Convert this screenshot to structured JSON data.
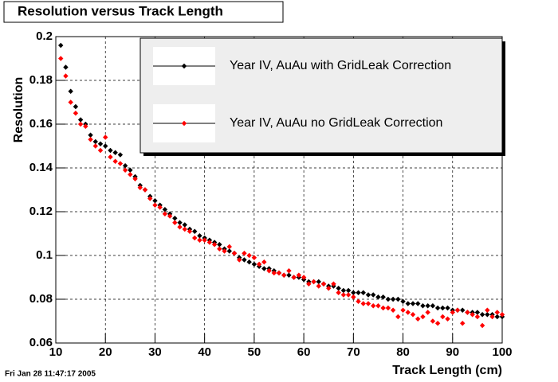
{
  "chart_data": {
    "type": "scatter",
    "title": "Resolution versus Track Length",
    "xlabel": "Track Length (cm)",
    "ylabel": "Resolution",
    "footer": "Fri Jan 28 11:47:17 2005",
    "xlim": [
      10,
      100
    ],
    "ylim": [
      0.06,
      0.2
    ],
    "xticks": [
      10,
      20,
      30,
      40,
      50,
      60,
      70,
      80,
      90,
      100
    ],
    "yticks": [
      0.06,
      0.08,
      0.1,
      0.12,
      0.14,
      0.16,
      0.18,
      0.2
    ],
    "grid": true,
    "legend": "upper right",
    "x": [
      11,
      12,
      13,
      14,
      15,
      16,
      17,
      18,
      19,
      20,
      21,
      22,
      23,
      24,
      25,
      26,
      27,
      28,
      29,
      30,
      31,
      32,
      33,
      34,
      35,
      36,
      37,
      38,
      39,
      40,
      41,
      42,
      43,
      44,
      45,
      46,
      47,
      48,
      49,
      50,
      51,
      52,
      53,
      54,
      55,
      56,
      57,
      58,
      59,
      60,
      61,
      62,
      63,
      64,
      65,
      66,
      67,
      68,
      69,
      70,
      71,
      72,
      73,
      74,
      75,
      76,
      77,
      78,
      79,
      80,
      81,
      82,
      83,
      84,
      85,
      86,
      87,
      88,
      89,
      90,
      91,
      92,
      93,
      94,
      95,
      96,
      97,
      98,
      99,
      100
    ],
    "series": [
      {
        "name": "Year IV, AuAu with GridLeak Correction",
        "color": "#000000",
        "values": [
          0.196,
          0.186,
          0.175,
          0.168,
          0.162,
          0.16,
          0.155,
          0.152,
          0.151,
          0.15,
          0.148,
          0.147,
          0.146,
          0.141,
          0.139,
          0.136,
          0.132,
          0.13,
          0.127,
          0.125,
          0.123,
          0.121,
          0.119,
          0.117,
          0.115,
          0.114,
          0.112,
          0.111,
          0.109,
          0.108,
          0.107,
          0.106,
          0.105,
          0.103,
          0.102,
          0.101,
          0.099,
          0.098,
          0.097,
          0.096,
          0.095,
          0.094,
          0.094,
          0.093,
          0.092,
          0.091,
          0.091,
          0.09,
          0.09,
          0.089,
          0.088,
          0.088,
          0.088,
          0.087,
          0.086,
          0.086,
          0.085,
          0.084,
          0.084,
          0.083,
          0.083,
          0.083,
          0.082,
          0.082,
          0.081,
          0.081,
          0.08,
          0.08,
          0.08,
          0.079,
          0.078,
          0.078,
          0.078,
          0.077,
          0.077,
          0.077,
          0.076,
          0.076,
          0.076,
          0.075,
          0.075,
          0.075,
          0.074,
          0.074,
          0.074,
          0.073,
          0.073,
          0.073,
          0.072,
          0.072
        ]
      },
      {
        "name": "Year IV, AuAu no GridLeak Correction",
        "color": "#ff0000",
        "values": [
          0.19,
          0.182,
          0.17,
          0.165,
          0.16,
          0.159,
          0.153,
          0.15,
          0.148,
          0.154,
          0.145,
          0.143,
          0.142,
          0.139,
          0.137,
          0.135,
          0.131,
          0.13,
          0.126,
          0.123,
          0.122,
          0.119,
          0.118,
          0.115,
          0.113,
          0.112,
          0.111,
          0.108,
          0.107,
          0.107,
          0.106,
          0.105,
          0.103,
          0.102,
          0.104,
          0.101,
          0.098,
          0.101,
          0.1,
          0.099,
          0.096,
          0.097,
          0.093,
          0.092,
          0.092,
          0.091,
          0.093,
          0.09,
          0.091,
          0.09,
          0.087,
          0.088,
          0.086,
          0.087,
          0.085,
          0.087,
          0.083,
          0.082,
          0.082,
          0.081,
          0.079,
          0.078,
          0.078,
          0.077,
          0.077,
          0.076,
          0.076,
          0.075,
          0.072,
          0.075,
          0.074,
          0.073,
          0.071,
          0.072,
          0.074,
          0.07,
          0.069,
          0.072,
          0.071,
          0.074,
          0.075,
          0.069,
          0.074,
          0.073,
          0.072,
          0.068,
          0.075,
          0.072,
          0.074,
          0.073
        ]
      }
    ]
  }
}
